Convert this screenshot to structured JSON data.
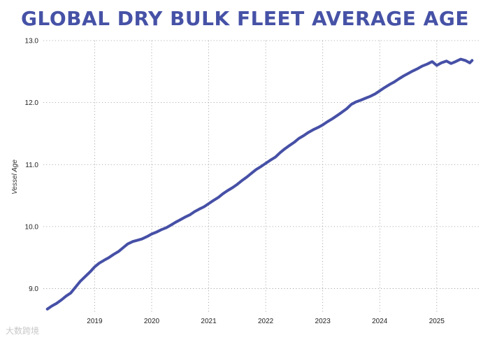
{
  "chart_data": {
    "type": "line",
    "title": "GLOBAL DRY BULK FLEET AVERAGE AGE",
    "xlabel": "",
    "ylabel": "Vessel Age",
    "x_ticks": [
      "2019",
      "2020",
      "2021",
      "2022",
      "2023",
      "2024",
      "2025"
    ],
    "y_ticks": [
      "9.0",
      "10.0",
      "11.0",
      "12.0",
      "13.0"
    ],
    "xlim": [
      2018.1,
      2025.75
    ],
    "ylim": [
      8.6,
      13.0
    ],
    "grid": true,
    "series": [
      {
        "name": "Vessel Age",
        "color": "#4650a6",
        "x": [
          2018.17,
          2018.25,
          2018.33,
          2018.42,
          2018.5,
          2018.58,
          2018.67,
          2018.75,
          2018.83,
          2018.92,
          2019.0,
          2019.08,
          2019.17,
          2019.25,
          2019.33,
          2019.42,
          2019.5,
          2019.58,
          2019.67,
          2019.75,
          2019.83,
          2019.92,
          2020.0,
          2020.08,
          2020.17,
          2020.25,
          2020.33,
          2020.42,
          2020.5,
          2020.58,
          2020.67,
          2020.75,
          2020.83,
          2020.92,
          2021.0,
          2021.08,
          2021.17,
          2021.25,
          2021.33,
          2021.42,
          2021.5,
          2021.58,
          2021.67,
          2021.75,
          2021.83,
          2021.92,
          2022.0,
          2022.08,
          2022.17,
          2022.25,
          2022.33,
          2022.42,
          2022.5,
          2022.58,
          2022.67,
          2022.75,
          2022.83,
          2022.92,
          2023.0,
          2023.08,
          2023.17,
          2023.25,
          2023.33,
          2023.42,
          2023.5,
          2023.58,
          2023.67,
          2023.75,
          2023.83,
          2023.92,
          2024.0,
          2024.08,
          2024.17,
          2024.25,
          2024.33,
          2024.42,
          2024.5,
          2024.58,
          2024.67,
          2024.75,
          2024.83,
          2024.92,
          2025.0,
          2025.08,
          2025.17,
          2025.25,
          2025.33,
          2025.42,
          2025.5,
          2025.58,
          2025.62
        ],
        "values": [
          8.67,
          8.72,
          8.76,
          8.82,
          8.88,
          8.93,
          9.03,
          9.12,
          9.19,
          9.27,
          9.35,
          9.41,
          9.46,
          9.5,
          9.55,
          9.6,
          9.66,
          9.72,
          9.76,
          9.78,
          9.8,
          9.84,
          9.88,
          9.91,
          9.95,
          9.98,
          10.02,
          10.07,
          10.11,
          10.15,
          10.19,
          10.24,
          10.28,
          10.32,
          10.37,
          10.42,
          10.47,
          10.53,
          10.58,
          10.63,
          10.68,
          10.74,
          10.8,
          10.86,
          10.92,
          10.97,
          11.02,
          11.07,
          11.12,
          11.19,
          11.25,
          11.31,
          11.36,
          11.42,
          11.47,
          11.52,
          11.56,
          11.6,
          11.64,
          11.69,
          11.74,
          11.79,
          11.84,
          11.9,
          11.97,
          12.01,
          12.04,
          12.07,
          12.1,
          12.14,
          12.19,
          12.24,
          12.29,
          12.33,
          12.38,
          12.43,
          12.47,
          12.51,
          12.55,
          12.59,
          12.62,
          12.66,
          12.6,
          12.64,
          12.67,
          12.63,
          12.66,
          12.7,
          12.68,
          12.64,
          12.68
        ]
      }
    ]
  },
  "watermark": "大数跨境"
}
